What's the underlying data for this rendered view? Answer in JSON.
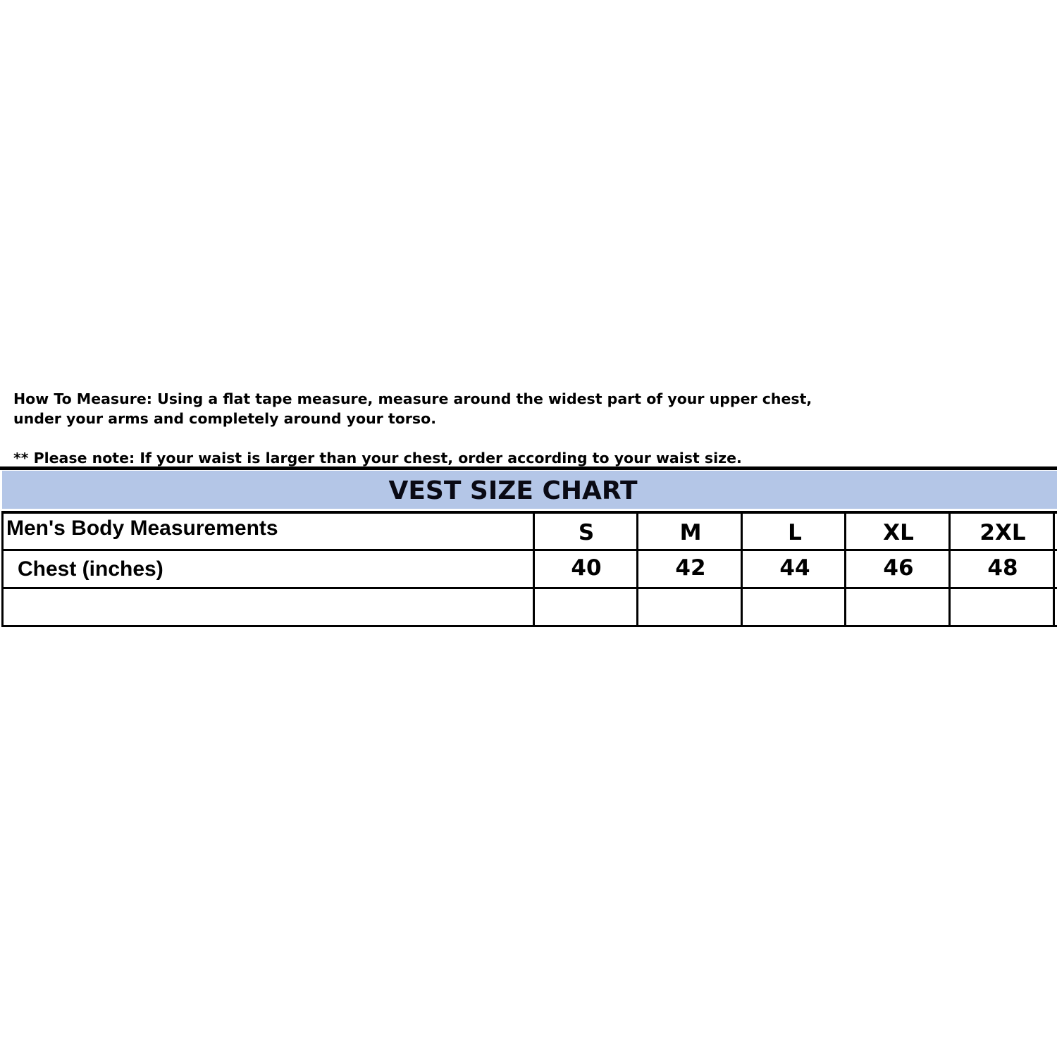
{
  "instructions": {
    "line1": "How To Measure: Using a flat tape measure, measure around the widest part of your upper chest,",
    "line2": "under your arms and completely around your torso.",
    "note": "** Please note: If your waist is larger than your chest, order according to your waist size."
  },
  "table": {
    "title": "VEST SIZE CHART",
    "header_color": "#b4c6e7",
    "row_header": "Men's Body Measurements",
    "sizes": [
      "S",
      "M",
      "L",
      "XL",
      "2XL"
    ],
    "rows": [
      {
        "label": "Chest (inches)",
        "values": [
          "40",
          "42",
          "44",
          "46",
          "48"
        ]
      }
    ]
  }
}
